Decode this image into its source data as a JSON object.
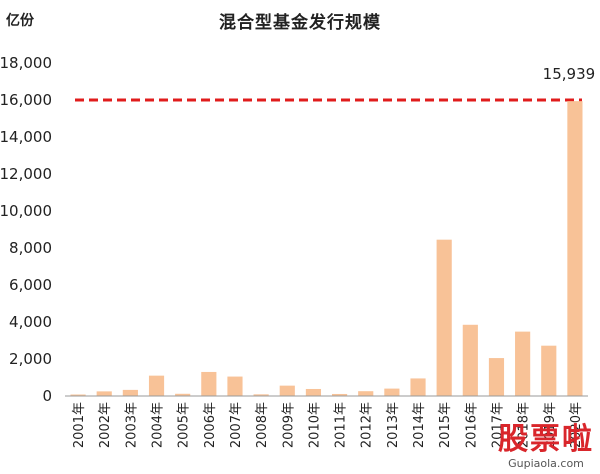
{
  "header": {
    "unit": "亿份",
    "title": "混合型基金发行规模"
  },
  "watermark": {
    "brand": "股票啦",
    "site": "Gupiaola.com"
  },
  "chart_data": {
    "type": "bar",
    "title": "混合型基金发行规模",
    "ylabel": "亿份",
    "xlabel": "",
    "categories": [
      "2001年",
      "2002年",
      "2003年",
      "2004年",
      "2005年",
      "2006年",
      "2007年",
      "2008年",
      "2009年",
      "2010年",
      "2011年",
      "2012年",
      "2013年",
      "2014年",
      "2015年",
      "2016年",
      "2017年",
      "2018年",
      "2019年",
      "2020年"
    ],
    "values": [
      80,
      250,
      330,
      1100,
      120,
      1300,
      1050,
      90,
      560,
      380,
      110,
      260,
      400,
      950,
      8450,
      3850,
      2050,
      3480,
      2720,
      15939
    ],
    "data_labels": [
      {
        "index": 19,
        "text": "15,939"
      }
    ],
    "reference_line": {
      "value": 16000,
      "style": "dashed",
      "color": "#e01c1c"
    },
    "ylim": [
      0,
      18000
    ],
    "yticks": [
      0,
      2000,
      4000,
      6000,
      8000,
      10000,
      12000,
      14000,
      16000,
      18000
    ],
    "grid": false,
    "legend": "none",
    "bar_color": "#f8c297"
  }
}
